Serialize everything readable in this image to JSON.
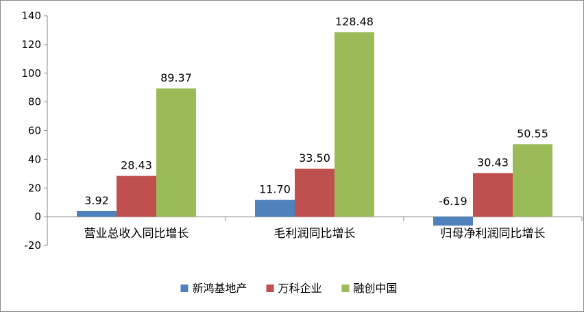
{
  "chart_data": {
    "type": "bar",
    "categories": [
      "营业总收入同比增长",
      "毛利润同比增长",
      "归母净利润同比增长"
    ],
    "series": [
      {
        "name": "新鸿基地产",
        "values": [
          3.92,
          11.7,
          -6.19
        ],
        "labels": [
          "3.92",
          "11.70",
          "-6.19"
        ],
        "color": "#4f81bd"
      },
      {
        "name": "万科企业",
        "values": [
          28.43,
          33.5,
          30.43
        ],
        "labels": [
          "28.43",
          "33.50",
          "30.43"
        ],
        "color": "#c0504d"
      },
      {
        "name": "融创中国",
        "values": [
          89.37,
          128.48,
          50.55
        ],
        "labels": [
          "89.37",
          "128.48",
          "50.55"
        ],
        "color": "#9bbb59"
      }
    ],
    "yticks": [
      -20,
      0,
      20,
      40,
      60,
      80,
      100,
      120,
      140
    ],
    "ylim": [
      -20,
      140
    ],
    "title": "",
    "xlabel": "",
    "ylabel": "",
    "grid": false,
    "legend": "bottom"
  }
}
